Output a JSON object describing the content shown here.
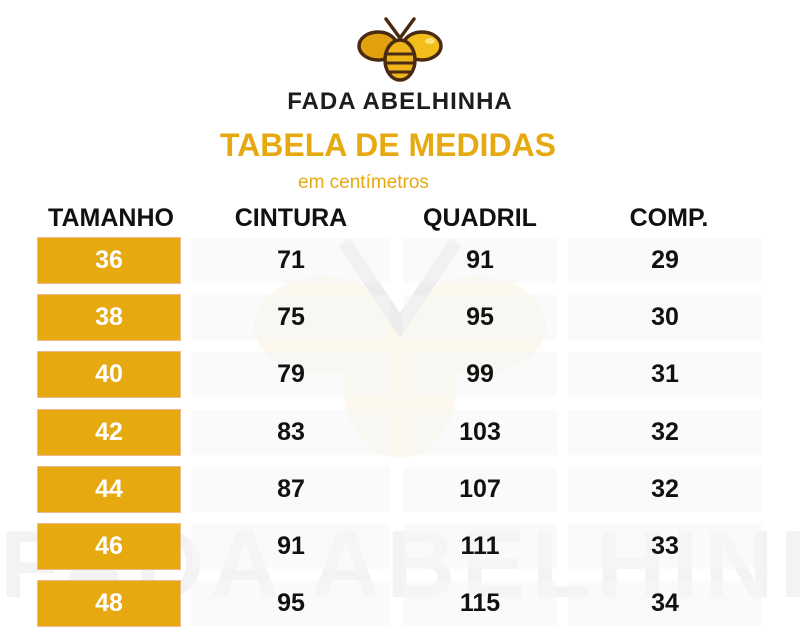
{
  "brand": {
    "name": "FADA ABELHINHA",
    "colors": {
      "gold": "#e6a910",
      "dark": "#1d1d1b"
    }
  },
  "title": "TABELA DE MEDIDAS",
  "subtitle": "em centímetros",
  "table": {
    "headers": [
      "TAMANHO",
      "CINTURA",
      "QUADRIL",
      "COMP."
    ],
    "rows": [
      {
        "size": "36",
        "cintura": "71",
        "quadril": "91",
        "comp": "29"
      },
      {
        "size": "38",
        "cintura": "75",
        "quadril": "95",
        "comp": "30"
      },
      {
        "size": "40",
        "cintura": "79",
        "quadril": "99",
        "comp": "31"
      },
      {
        "size": "42",
        "cintura": "83",
        "quadril": "103",
        "comp": "32"
      },
      {
        "size": "44",
        "cintura": "87",
        "quadril": "107",
        "comp": "32"
      },
      {
        "size": "46",
        "cintura": "91",
        "quadril": "111",
        "comp": "33"
      },
      {
        "size": "48",
        "cintura": "95",
        "quadril": "115",
        "comp": "34"
      }
    ]
  }
}
